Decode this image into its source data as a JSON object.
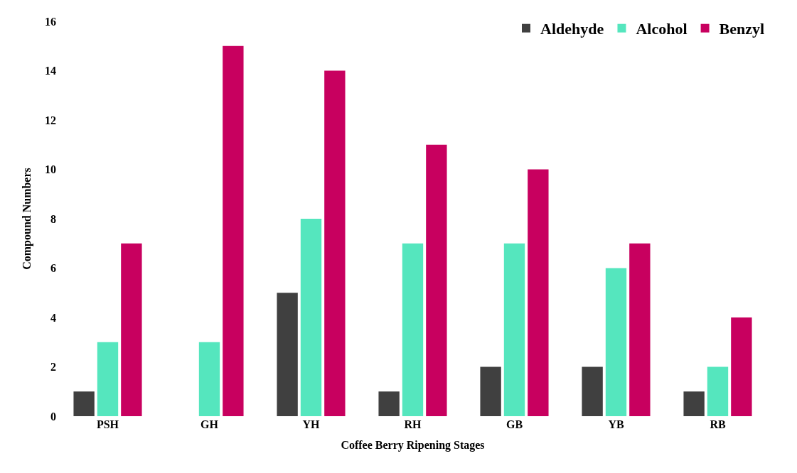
{
  "chart_data": {
    "type": "bar",
    "xlabel": "Coffee Berry Ripening Stages",
    "ylabel": "Compound Numbers",
    "categories": [
      "PSH",
      "GH",
      "YH",
      "RH",
      "GB",
      "YB",
      "RB"
    ],
    "series": [
      {
        "name": "Aldehyde",
        "color": "#404040",
        "values": [
          1,
          0,
          5,
          1,
          2,
          2,
          1
        ]
      },
      {
        "name": "Alcohol",
        "color": "#55e6be",
        "values": [
          3,
          3,
          8,
          7,
          7,
          6,
          2
        ]
      },
      {
        "name": "Benzyl",
        "color": "#c8005f",
        "values": [
          7,
          15,
          14,
          11,
          10,
          7,
          4
        ]
      }
    ],
    "ylim": [
      0,
      16
    ],
    "yticks": [
      0,
      2,
      4,
      6,
      8,
      10,
      12,
      14,
      16
    ],
    "legend": "top right"
  }
}
